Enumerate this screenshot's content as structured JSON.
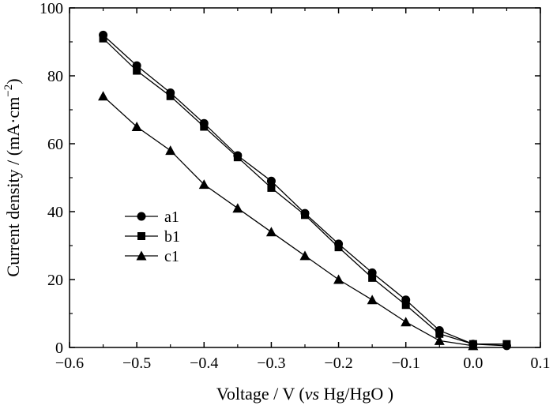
{
  "chart_data": {
    "type": "line",
    "xlabel": "Voltage / V",
    "xlabel_italic": "vs",
    "xlabel_tail": "Hg/HgO )",
    "xlabel_open": " (",
    "ylabel": "Current density / (mA·cm",
    "ylabel_sup": "−2",
    "ylabel_close": ")",
    "xlim": [
      -0.6,
      0.1
    ],
    "ylim": [
      0,
      100
    ],
    "xticks": [
      -0.6,
      -0.5,
      -0.4,
      -0.3,
      -0.2,
      -0.1,
      0.0,
      0.1
    ],
    "xtick_labels": [
      "−0.6",
      "−0.5",
      "−0.4",
      "−0.3",
      "−0.2",
      "−0.1",
      "0.0",
      "0.1"
    ],
    "yticks": [
      0,
      20,
      40,
      60,
      80,
      100
    ],
    "ytick_labels": [
      "0",
      "20",
      "40",
      "60",
      "80",
      "100"
    ],
    "grid": false,
    "legend_position": "middle-left",
    "series": [
      {
        "name": "a1",
        "marker": "circle",
        "x": [
          -0.55,
          -0.5,
          -0.45,
          -0.4,
          -0.35,
          -0.3,
          -0.25,
          -0.2,
          -0.15,
          -0.1,
          -0.05,
          0.0,
          0.05
        ],
        "y": [
          92,
          83,
          75,
          66,
          56.5,
          49,
          39.5,
          30.5,
          22,
          14,
          5,
          1,
          0.5
        ]
      },
      {
        "name": "b1",
        "marker": "square",
        "x": [
          -0.55,
          -0.5,
          -0.45,
          -0.4,
          -0.35,
          -0.3,
          -0.25,
          -0.2,
          -0.15,
          -0.1,
          -0.05,
          0.0,
          0.05
        ],
        "y": [
          91,
          81.5,
          74,
          65,
          56,
          47,
          39,
          29.5,
          20.5,
          12.5,
          4,
          1,
          1
        ]
      },
      {
        "name": "c1",
        "marker": "triangle",
        "x": [
          -0.55,
          -0.5,
          -0.45,
          -0.4,
          -0.35,
          -0.3,
          -0.25,
          -0.2,
          -0.15,
          -0.1,
          -0.05,
          0.0
        ],
        "y": [
          74,
          65,
          58,
          48,
          41,
          34,
          27,
          20,
          14,
          7.5,
          2,
          0.5
        ]
      }
    ]
  }
}
